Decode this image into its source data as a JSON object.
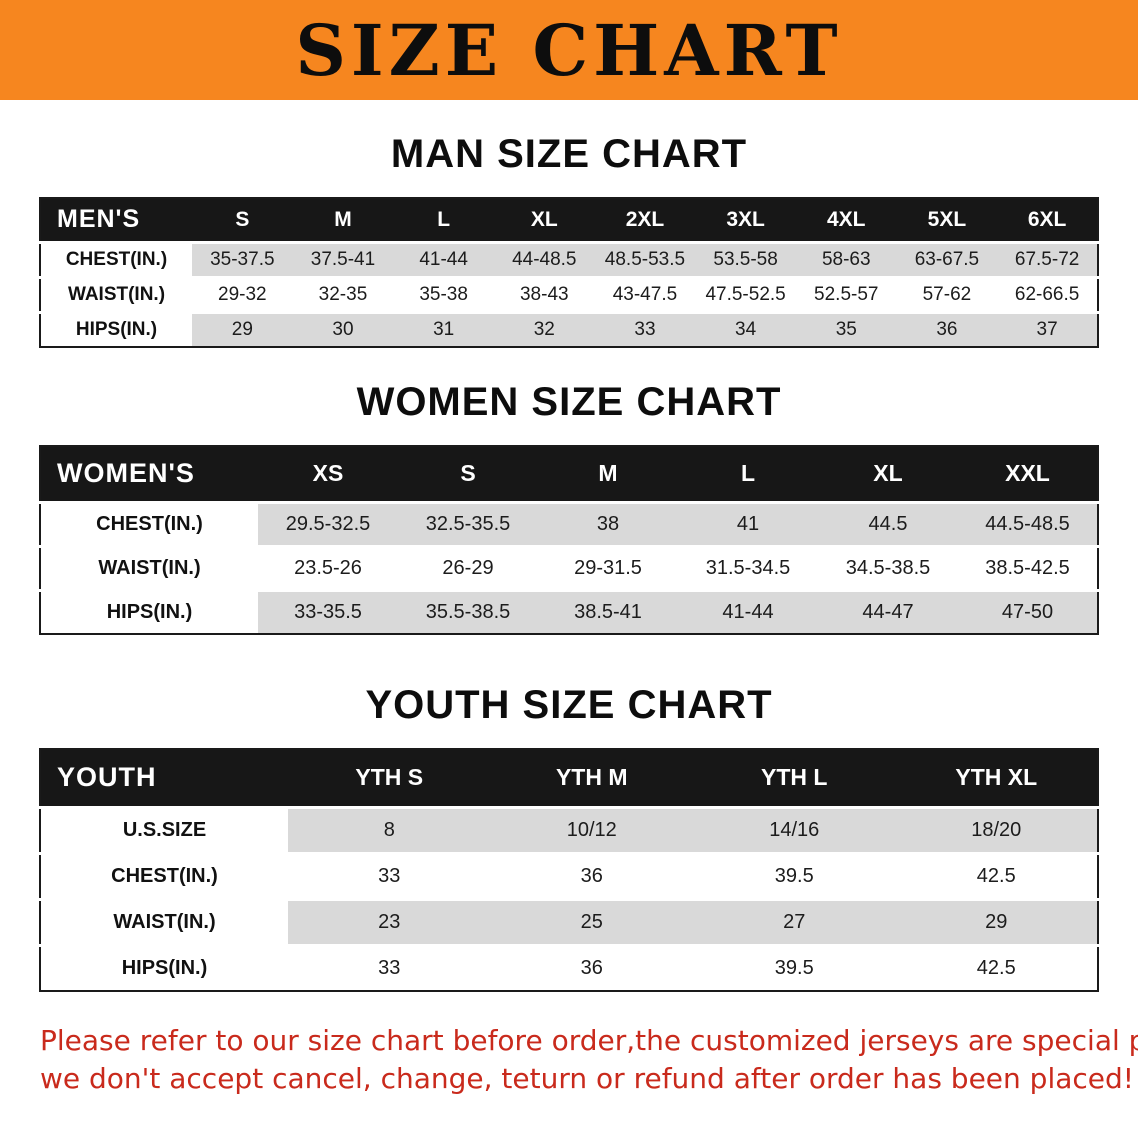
{
  "banner": {
    "title": "SIZE CHART",
    "bg_color": "#f6861f"
  },
  "sections": [
    {
      "heading": "MAN SIZE CHART",
      "table": {
        "name": "men-size-table",
        "header": [
          "MEN'S",
          "S",
          "M",
          "L",
          "XL",
          "2XL",
          "3XL",
          "4XL",
          "5XL",
          "6XL"
        ],
        "rows": [
          {
            "label": "CHEST(IN.)",
            "values": [
              "35-37.5",
              "37.5-41",
              "41-44",
              "44-48.5",
              "48.5-53.5",
              "53.5-58",
              "58-63",
              "63-67.5",
              "67.5-72"
            ]
          },
          {
            "label": "WAIST(IN.)",
            "values": [
              "29-32",
              "32-35",
              "35-38",
              "38-43",
              "43-47.5",
              "47.5-52.5",
              "52.5-57",
              "57-62",
              "62-66.5"
            ]
          },
          {
            "label": "HIPS(IN.)",
            "values": [
              "29",
              "30",
              "31",
              "32",
              "33",
              "34",
              "35",
              "36",
              "37"
            ]
          }
        ]
      }
    },
    {
      "heading": "WOMEN SIZE CHART",
      "table": {
        "name": "women-size-table",
        "header": [
          "WOMEN'S",
          "XS",
          "S",
          "M",
          "L",
          "XL",
          "XXL"
        ],
        "rows": [
          {
            "label": "CHEST(IN.)",
            "values": [
              "29.5-32.5",
              "32.5-35.5",
              "38",
              "41",
              "44.5",
              "44.5-48.5"
            ]
          },
          {
            "label": "WAIST(IN.)",
            "values": [
              "23.5-26",
              "26-29",
              "29-31.5",
              "31.5-34.5",
              "34.5-38.5",
              "38.5-42.5"
            ]
          },
          {
            "label": "HIPS(IN.)",
            "values": [
              "33-35.5",
              "35.5-38.5",
              "38.5-41",
              "41-44",
              "44-47",
              "47-50"
            ]
          }
        ]
      }
    },
    {
      "heading": "YOUTH SIZE CHART",
      "table": {
        "name": "youth-size-table",
        "header": [
          "YOUTH",
          "YTH S",
          "YTH M",
          "YTH L",
          "YTH XL"
        ],
        "rows": [
          {
            "label": "U.S.SIZE",
            "values": [
              "8",
              "10/12",
              "14/16",
              "18/20"
            ]
          },
          {
            "label": "CHEST(IN.)",
            "values": [
              "33",
              "36",
              "39.5",
              "42.5"
            ]
          },
          {
            "label": "WAIST(IN.)",
            "values": [
              "23",
              "25",
              "27",
              "29"
            ]
          },
          {
            "label": "HIPS(IN.)",
            "values": [
              "33",
              "36",
              "39.5",
              "42.5"
            ]
          }
        ]
      }
    }
  ],
  "footer": {
    "line1": "Please refer to our size chart before order,the customized jerseys are special products,",
    "line2": "we don't accept cancel, change, teturn or refund after order has been placed!",
    "text_color": "#c92a1c"
  }
}
